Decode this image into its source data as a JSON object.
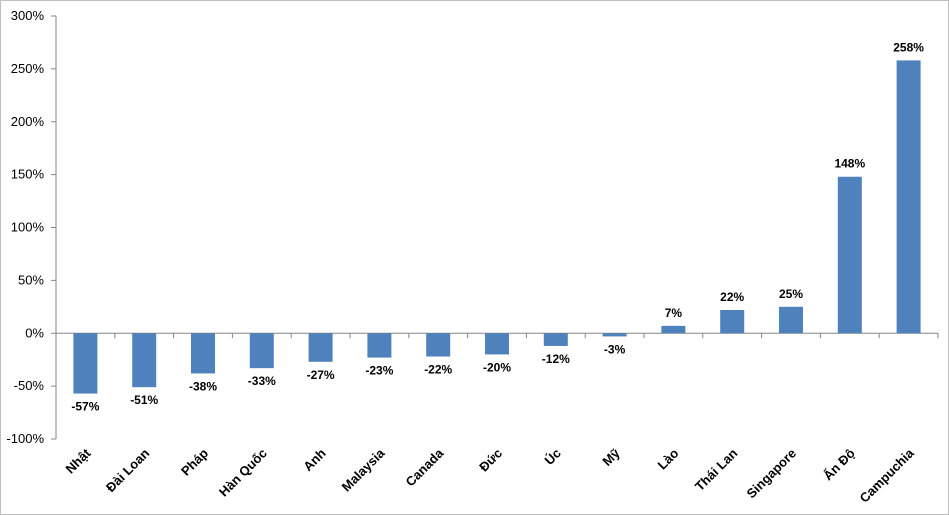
{
  "chart_data": {
    "type": "bar",
    "title": "",
    "xlabel": "",
    "ylabel": "",
    "ylim": [
      -100,
      300
    ],
    "ytick_step": 50,
    "ytick_suffix": "%",
    "grid": false,
    "bar_color": "#4f81bd",
    "categories": [
      "Nhật",
      "Đài Loan",
      "Pháp",
      "Hàn Quốc",
      "Anh",
      "Malaysia",
      "Canada",
      "Đức",
      "Úc",
      "Mỹ",
      "Lào",
      "Thái Lan",
      "Singapore",
      "Ấn Độ",
      "Campuchia"
    ],
    "values": [
      -57,
      -51,
      -38,
      -33,
      -27,
      -23,
      -22,
      -20,
      -12,
      -3,
      7,
      22,
      25,
      148,
      258
    ],
    "data_labels": [
      "-57%",
      "-51%",
      "-38%",
      "-33%",
      "-27%",
      "-23%",
      "-22%",
      "-20%",
      "-12%",
      "-3%",
      "7%",
      "22%",
      "25%",
      "148%",
      "258%"
    ]
  }
}
